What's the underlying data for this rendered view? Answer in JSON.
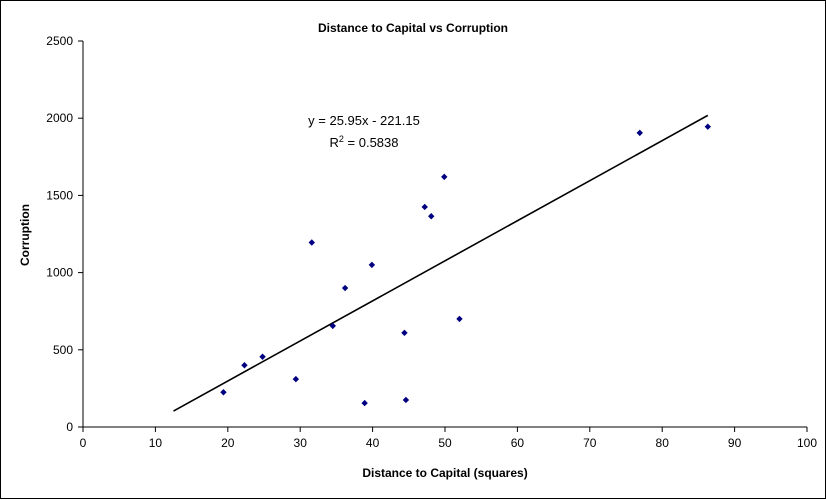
{
  "chart_data": {
    "type": "scatter",
    "title": "Distance to Capital vs Corruption",
    "xlabel": "Distance to Capital (squares)",
    "ylabel": "Corruption",
    "xlim": [
      0,
      100
    ],
    "ylim": [
      0,
      2500
    ],
    "xticks": [
      0,
      10,
      20,
      30,
      40,
      50,
      60,
      70,
      80,
      90,
      100
    ],
    "yticks": [
      0,
      500,
      1000,
      1500,
      2000,
      2500
    ],
    "grid": false,
    "legend": "none",
    "marker_color": "#000080",
    "series": [
      {
        "points": [
          {
            "x": 19.4,
            "y": 225
          },
          {
            "x": 22.3,
            "y": 400
          },
          {
            "x": 24.8,
            "y": 455
          },
          {
            "x": 29.4,
            "y": 310
          },
          {
            "x": 31.6,
            "y": 1195
          },
          {
            "x": 34.5,
            "y": 655
          },
          {
            "x": 36.2,
            "y": 900
          },
          {
            "x": 38.9,
            "y": 155
          },
          {
            "x": 39.9,
            "y": 1050
          },
          {
            "x": 44.4,
            "y": 610
          },
          {
            "x": 44.6,
            "y": 175
          },
          {
            "x": 47.2,
            "y": 1425
          },
          {
            "x": 48.1,
            "y": 1365
          },
          {
            "x": 49.9,
            "y": 1620
          },
          {
            "x": 52.0,
            "y": 700
          },
          {
            "x": 76.9,
            "y": 1905
          },
          {
            "x": 86.3,
            "y": 1945
          }
        ]
      }
    ],
    "trendline": {
      "type": "linear",
      "slope": 25.95,
      "intercept": -221.15,
      "x_range": [
        12.5,
        86.3
      ],
      "equation_text": "y = 25.95x - 221.15",
      "r2_prefix": "R",
      "r2_exponent": "2",
      "r2_suffix": " = 0.5838"
    }
  }
}
